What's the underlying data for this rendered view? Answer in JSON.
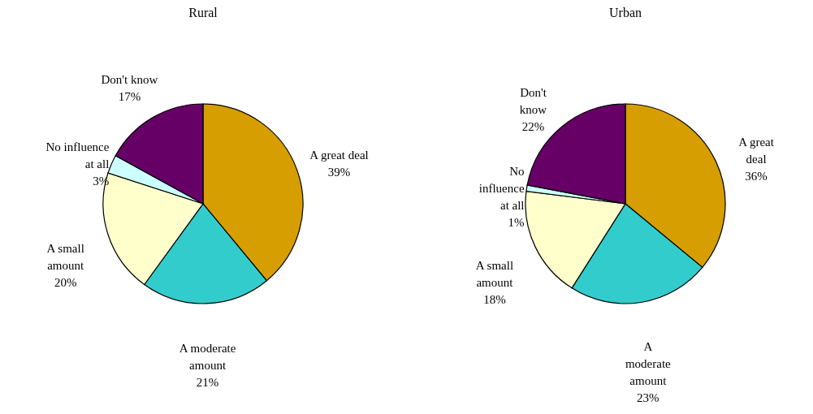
{
  "chart_data": [
    {
      "type": "pie",
      "title": "Rural",
      "categories": [
        "A great deal",
        "A moderate amount",
        "A small amount",
        "No influence at all",
        "Don't know"
      ],
      "values": [
        39,
        21,
        20,
        3,
        17
      ],
      "value_labels": [
        "39%",
        "21%",
        "20%",
        "3%",
        "17%"
      ],
      "colors": [
        "#d69e00",
        "#33cccc",
        "#ffffcc",
        "#ccffff",
        "#660066"
      ],
      "legend": false
    },
    {
      "type": "pie",
      "title": "Urban",
      "categories": [
        "A great deal",
        "A moderate amount",
        "A small amount",
        "No influence at all",
        "Don't know"
      ],
      "values": [
        36,
        23,
        18,
        1,
        22
      ],
      "value_labels": [
        "36%",
        "23%",
        "18%",
        "1%",
        "22%"
      ],
      "colors": [
        "#d69e00",
        "#33cccc",
        "#ffffcc",
        "#ccffff",
        "#660066"
      ],
      "legend": false
    }
  ]
}
